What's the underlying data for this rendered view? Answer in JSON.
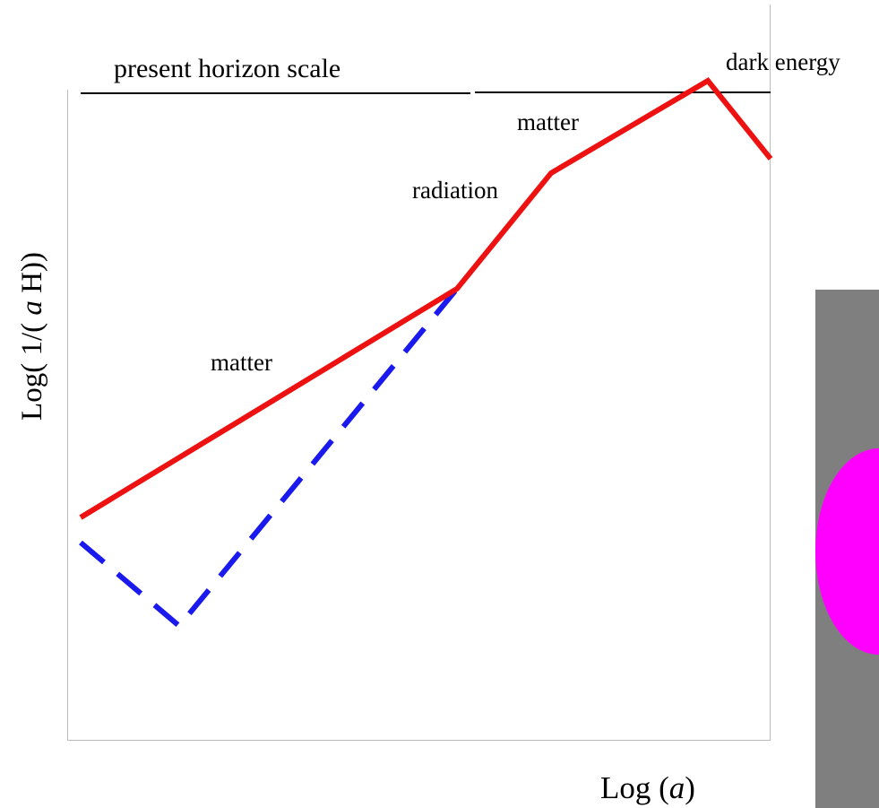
{
  "labels": {
    "horizon": "present horizon scale",
    "dark_energy": "dark energy",
    "matter_late": "matter",
    "radiation": "radiation",
    "matter_early": "matter"
  },
  "axes": {
    "y": {
      "parts": [
        "Log( 1/( ",
        "a",
        " H))"
      ]
    },
    "x": {
      "parts": [
        "Log (",
        "a",
        ")"
      ]
    }
  }
}
